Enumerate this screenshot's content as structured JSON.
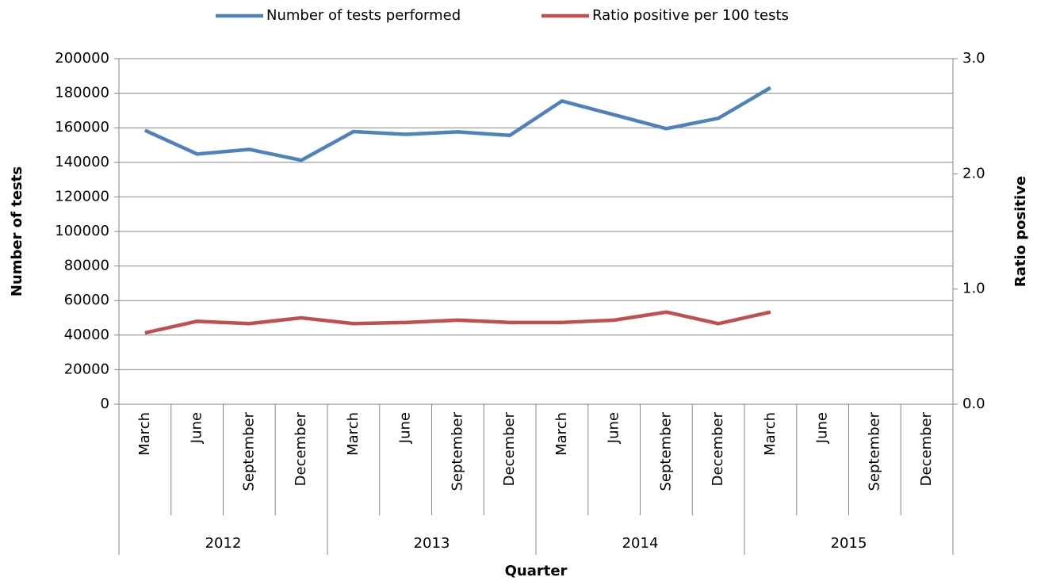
{
  "chart_data": {
    "type": "line",
    "x_title": "Quarter",
    "y_title": "Number of tests",
    "y2_title": "Ratio positive",
    "categories": [
      "March",
      "June",
      "September",
      "December",
      "March",
      "June",
      "September",
      "December",
      "March",
      "June",
      "September",
      "December",
      "March",
      "June",
      "September",
      "December"
    ],
    "groups": [
      "2012",
      "2013",
      "2014",
      "2015"
    ],
    "series": [
      {
        "name": "Number of tests performed",
        "color": "#4f81bd",
        "values": [
          158500,
          144800,
          147500,
          141200,
          157800,
          156200,
          157600,
          155600,
          175500,
          167500,
          159500,
          165500,
          183200,
          null,
          null,
          null
        ]
      },
      {
        "name": "Ratio positive per 100 tests",
        "color": "#c0504d",
        "axis": "y2",
        "values": [
          0.62,
          0.72,
          0.7,
          0.75,
          0.7,
          0.71,
          0.73,
          0.71,
          0.71,
          0.73,
          0.8,
          0.7,
          0.8,
          null,
          null,
          null
        ]
      }
    ],
    "ylim": [
      0,
      200000
    ],
    "yticks": [
      0,
      20000,
      40000,
      60000,
      80000,
      100000,
      120000,
      140000,
      160000,
      180000,
      200000
    ],
    "y2lim": [
      0,
      3
    ],
    "y2ticks": [
      {
        "value": 0,
        "label": "0.0"
      },
      {
        "value": 1,
        "label": "1.0"
      },
      {
        "value": 2,
        "label": "2.0"
      },
      {
        "value": 3,
        "label": "3.0"
      }
    ],
    "grid": true,
    "legend": "top"
  }
}
